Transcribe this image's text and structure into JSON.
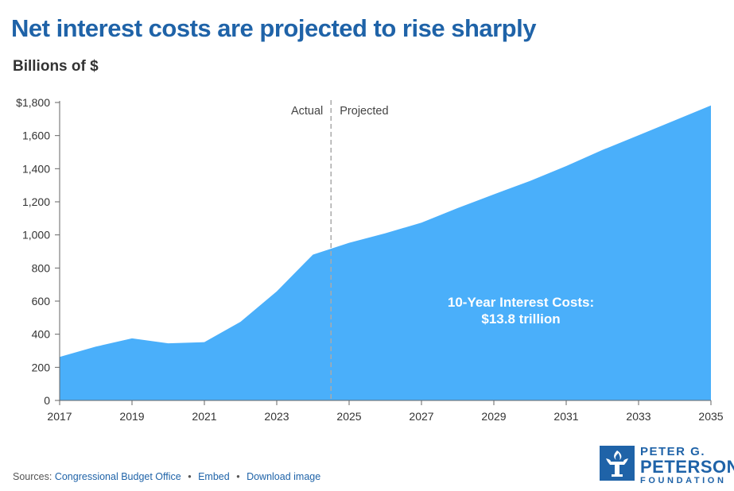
{
  "header": {
    "title": "Net interest costs are projected to rise sharply",
    "subtitle": "Billions of $"
  },
  "chart_data": {
    "type": "area",
    "title": "Net interest costs are projected to rise sharply",
    "ylabel": "Billions of $",
    "xlabel": "",
    "x": [
      2017,
      2018,
      2019,
      2020,
      2021,
      2022,
      2023,
      2024,
      2025,
      2026,
      2027,
      2028,
      2029,
      2030,
      2031,
      2032,
      2033,
      2034,
      2035
    ],
    "series": [
      {
        "name": "Net interest costs",
        "values": [
          263,
          325,
          375,
          345,
          352,
          475,
          659,
          881,
          952,
          1010,
          1074,
          1162,
          1245,
          1326,
          1416,
          1513,
          1602,
          1692,
          1782
        ]
      }
    ],
    "xlim": [
      2017,
      2035
    ],
    "ylim": [
      0,
      1800
    ],
    "y_ticks": [
      0,
      200,
      400,
      600,
      800,
      1000,
      1200,
      1400,
      1600,
      1800
    ],
    "y_tick_labels": [
      "0",
      "200",
      "400",
      "600",
      "800",
      "1,000",
      "1,200",
      "1,400",
      "1,600",
      "$1,800"
    ],
    "x_ticks": [
      2017,
      2019,
      2021,
      2023,
      2025,
      2027,
      2029,
      2031,
      2033,
      2035
    ],
    "x_tick_labels": [
      "2017",
      "2019",
      "2021",
      "2023",
      "2025",
      "2027",
      "2029",
      "2031",
      "2033",
      "2035"
    ],
    "grid": false,
    "divider": {
      "at": 2024.5,
      "left_label": "Actual",
      "right_label": "Projected"
    },
    "annotation": {
      "line1": "10-Year Interest Costs:",
      "line2": "$13.8 trillion"
    },
    "fill_color": "#4aaffa"
  },
  "footer": {
    "sources_label": "Sources:",
    "links": [
      "Congressional Budget Office",
      "Embed",
      "Download image"
    ],
    "separator": "•"
  },
  "logo": {
    "line1": "PETER G.",
    "line2": "PETERSON",
    "line3": "FOUNDATION",
    "badge_icon": "torch-icon"
  },
  "colors": {
    "title": "#1f63a8",
    "area": "#4aaffa",
    "axis": "#666666"
  }
}
